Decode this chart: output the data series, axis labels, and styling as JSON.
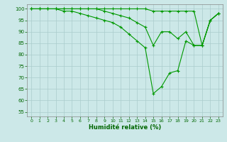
{
  "title": "",
  "xlabel": "Humidité relative (%)",
  "ylabel": "",
  "xlim": [
    -0.5,
    23.5
  ],
  "ylim": [
    53,
    102
  ],
  "yticks": [
    55,
    60,
    65,
    70,
    75,
    80,
    85,
    90,
    95,
    100
  ],
  "xticks": [
    0,
    1,
    2,
    3,
    4,
    5,
    6,
    7,
    8,
    9,
    10,
    11,
    12,
    13,
    14,
    15,
    16,
    17,
    18,
    19,
    20,
    21,
    22,
    23
  ],
  "bg_color": "#cce8e8",
  "grid_color": "#aacccc",
  "line_color": "#009900",
  "marker": "+",
  "series": [
    [
      100,
      100,
      100,
      100,
      100,
      100,
      100,
      100,
      100,
      100,
      100,
      100,
      100,
      100,
      100,
      99,
      99,
      99,
      99,
      99,
      99,
      84,
      95,
      98
    ],
    [
      100,
      100,
      100,
      100,
      100,
      100,
      100,
      100,
      100,
      99,
      98,
      97,
      96,
      94,
      92,
      84,
      90,
      90,
      87,
      90,
      84,
      84,
      95,
      98
    ],
    [
      100,
      100,
      100,
      100,
      99,
      99,
      98,
      97,
      96,
      95,
      94,
      92,
      89,
      86,
      83,
      63,
      66,
      72,
      73,
      86,
      84,
      84,
      95,
      98
    ]
  ]
}
